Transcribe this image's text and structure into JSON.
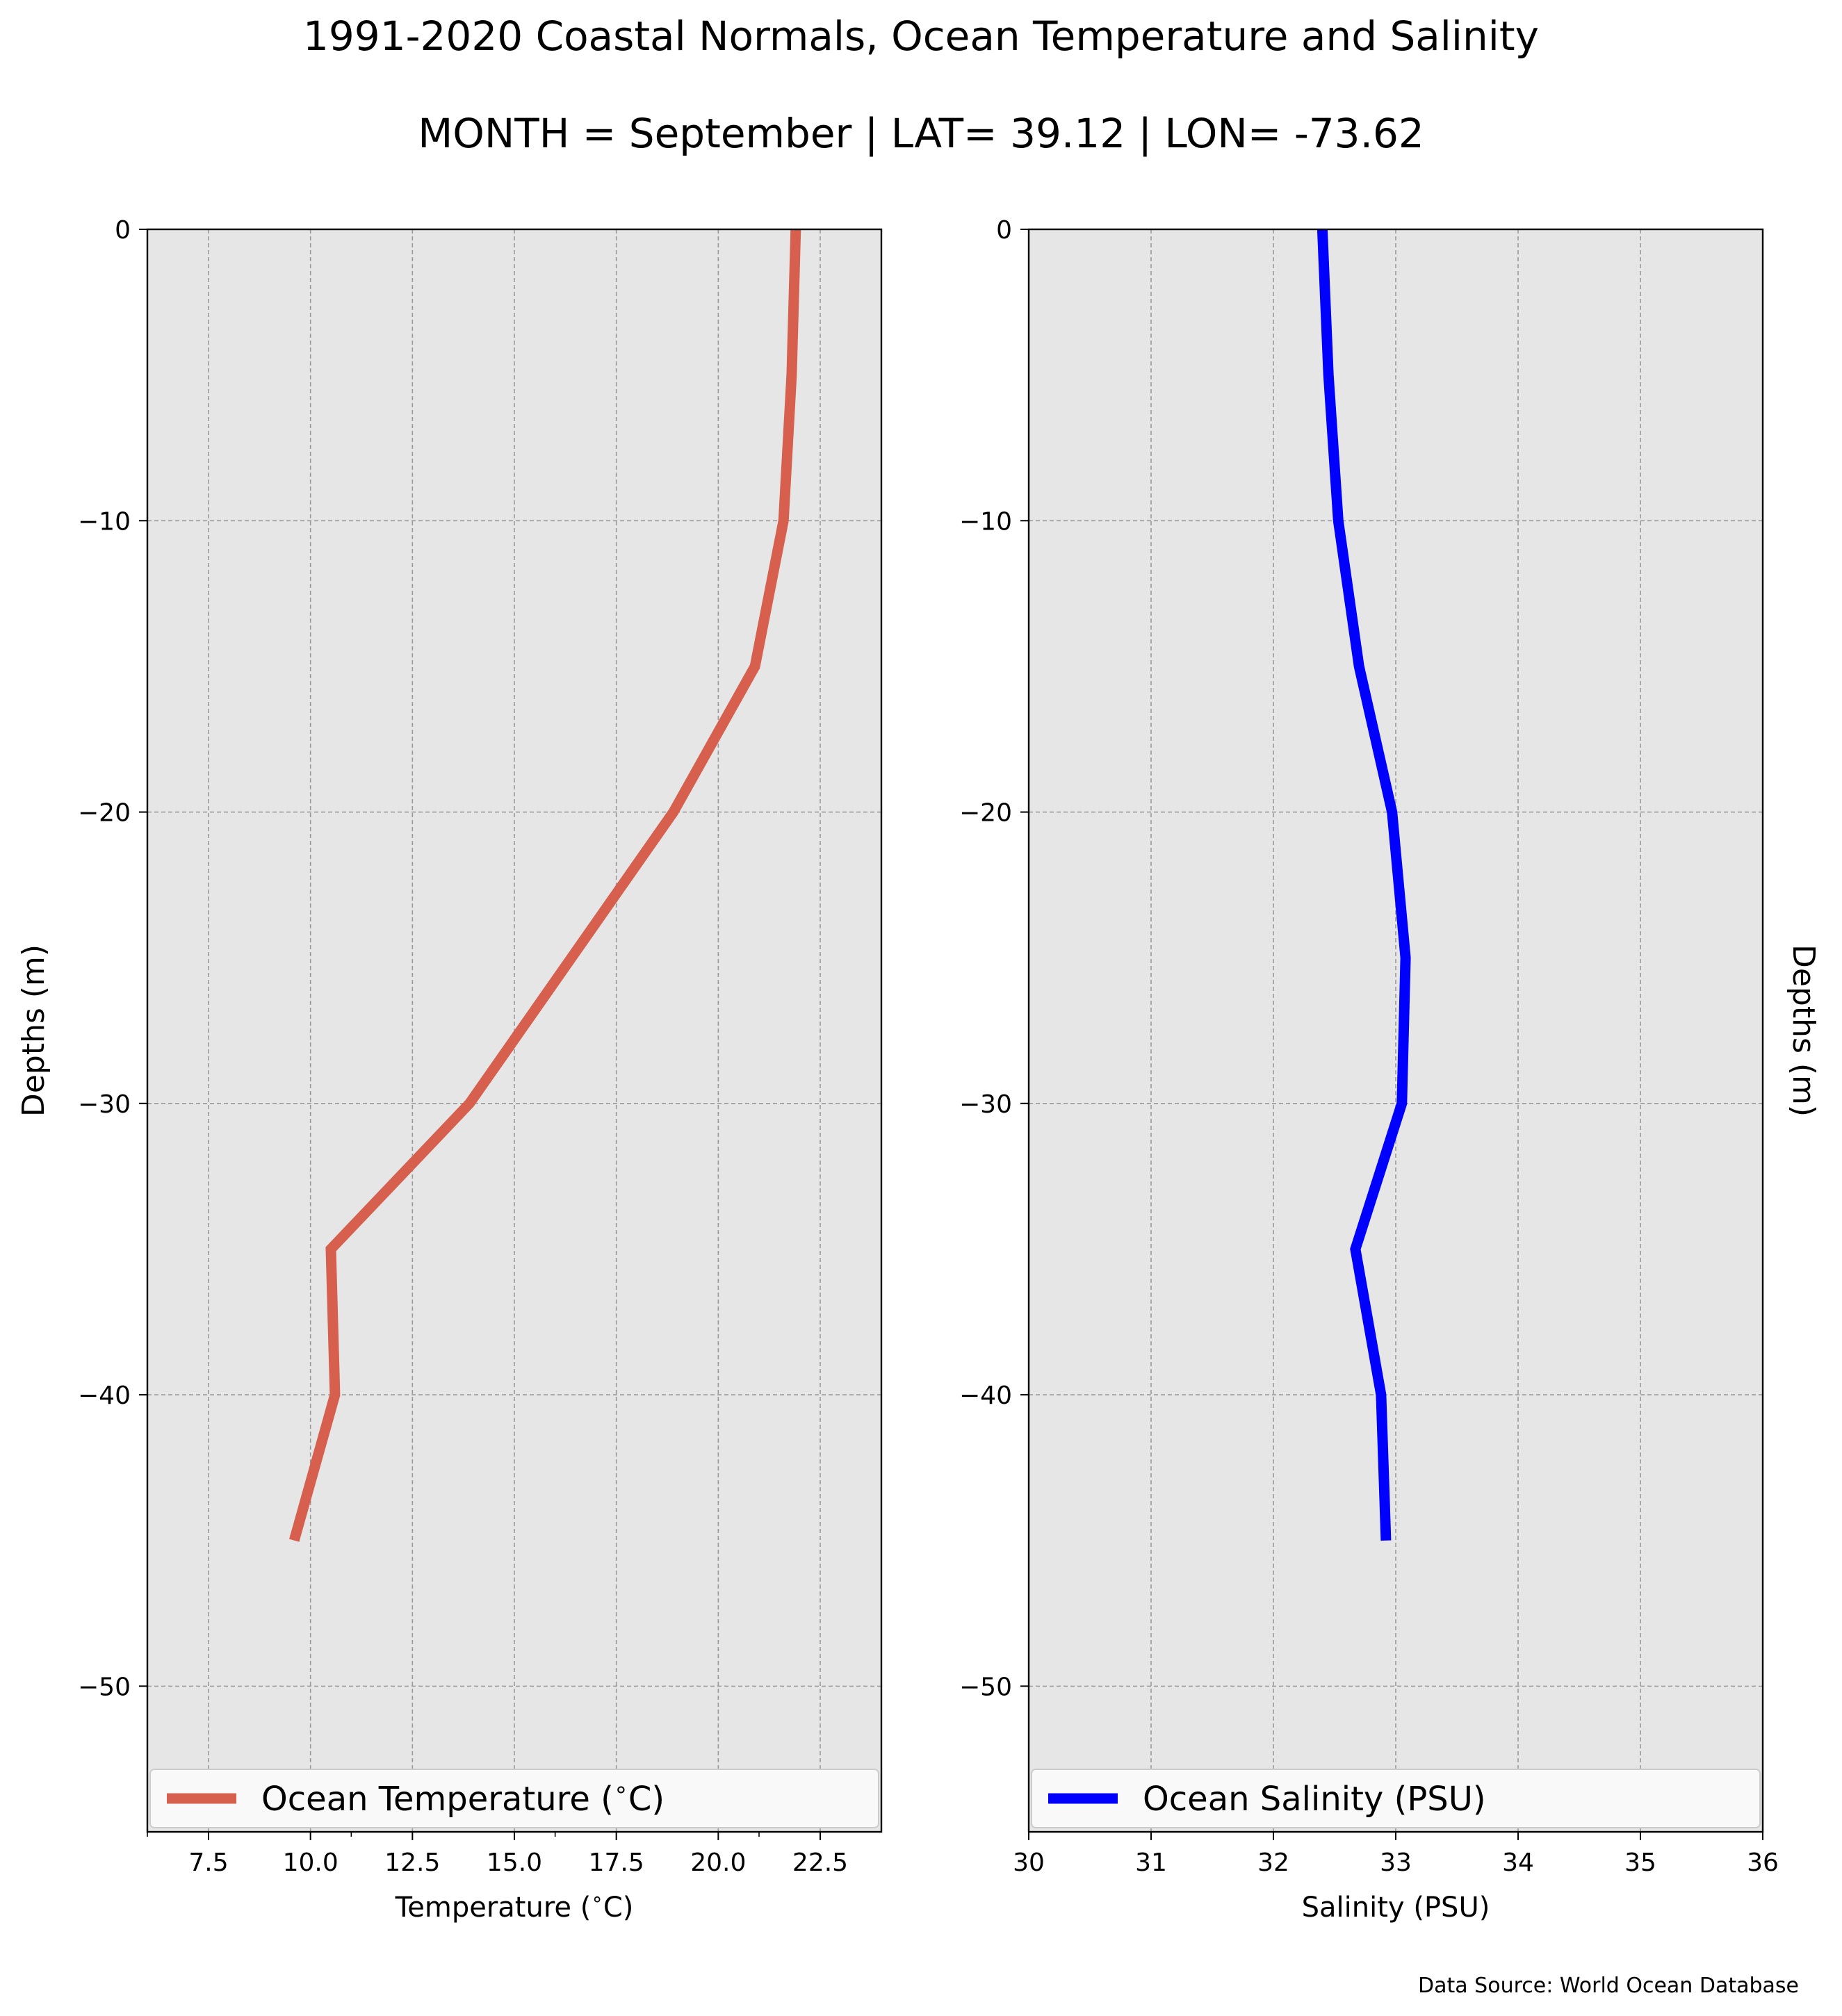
{
  "title": "1991-2020 Coastal Normals, Ocean Temperature and Salinity",
  "subtitle": "MONTH = September | LAT= 39.12 | LON= -73.62",
  "source": "Data Source: World Ocean Database",
  "colors": {
    "panel_bg": "#e6e6e6",
    "grid": "#9a9a9a",
    "temperature": "#d65f4e",
    "salinity": "#0000ff"
  },
  "chart_data": [
    {
      "type": "line",
      "xlabel": "Temperature ($^\\circ$C)",
      "ylabel": "Depths (m)",
      "ylabel_side": "left",
      "xlim": [
        6.0,
        24.0
      ],
      "ylim": [
        -55,
        0
      ],
      "xticks": [
        7.5,
        10.0,
        12.5,
        15.0,
        17.5,
        20.0,
        22.5
      ],
      "xtick_labels": [
        "7.5",
        "10.0",
        "12.5",
        "15.0",
        "17.5",
        "20.0",
        "22.5"
      ],
      "minor_xticks": [
        6.0,
        11.0,
        16.0,
        21.0
      ],
      "yticks": [
        0,
        -10,
        -20,
        -30,
        -40,
        -50
      ],
      "ytick_labels": [
        "0",
        "−10",
        "−20",
        "−30",
        "−40",
        "−50"
      ],
      "grid": true,
      "legend_position": "bottom",
      "series": [
        {
          "name": "Ocean Temperature ($^\\circ$C)",
          "color": "#d65f4e",
          "x": [
            21.9,
            21.8,
            21.6,
            20.9,
            18.9,
            13.9,
            10.5,
            10.6,
            9.6
          ],
          "y": [
            0,
            -5,
            -10,
            -15,
            -20,
            -30,
            -35,
            -40,
            -45
          ]
        }
      ]
    },
    {
      "type": "line",
      "xlabel": "Salinity (PSU)",
      "ylabel": "Depths (m)",
      "ylabel_side": "right",
      "xlim": [
        30,
        36
      ],
      "ylim": [
        -55,
        0
      ],
      "xticks": [
        30,
        31,
        32,
        33,
        34,
        35,
        36
      ],
      "xtick_labels": [
        "30",
        "31",
        "32",
        "33",
        "34",
        "35",
        "36"
      ],
      "yticks": [
        0,
        -10,
        -20,
        -30,
        -40,
        -50
      ],
      "ytick_labels": [
        "0",
        "−10",
        "−20",
        "−30",
        "−40",
        "−50"
      ],
      "grid": true,
      "legend_position": "bottom",
      "series": [
        {
          "name": "Ocean Salinity (PSU)",
          "color": "#0000ff",
          "x": [
            32.4,
            32.45,
            32.53,
            32.7,
            32.97,
            33.08,
            33.05,
            32.67,
            32.88,
            32.92
          ],
          "y": [
            0,
            -5,
            -10,
            -15,
            -20,
            -25,
            -30,
            -35,
            -40,
            -45
          ]
        }
      ]
    }
  ]
}
